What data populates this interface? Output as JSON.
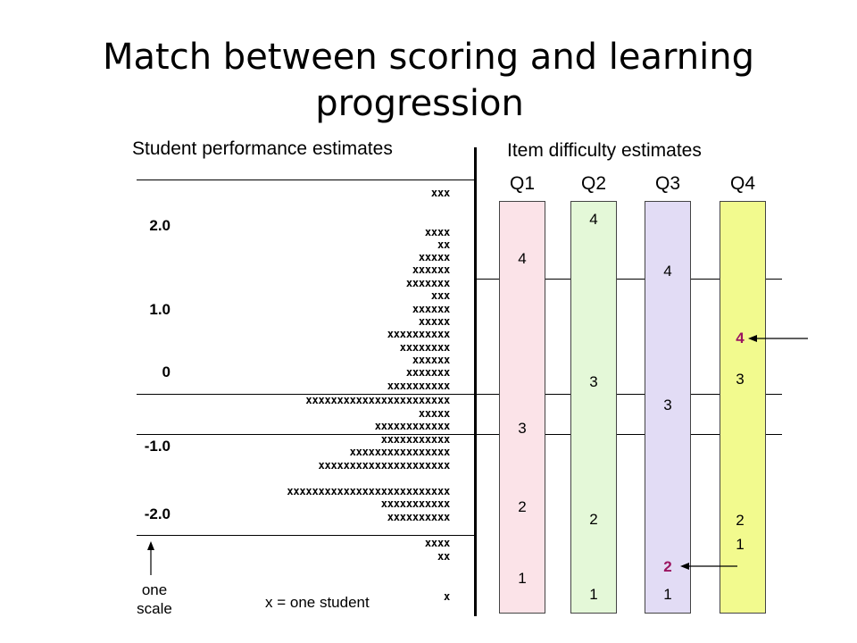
{
  "title": {
    "line1": "Match between scoring and learning",
    "line2": "progression"
  },
  "left_header": "Student performance estimates",
  "right_header": "Item difficulty estimates",
  "scale_labels": [
    "2.0",
    "1.0",
    "0",
    "-1.0",
    "-2.0"
  ],
  "student_rows": [
    "xxx",
    "xxxx",
    "xx",
    "xxxxx",
    "xxxxxx",
    "xxxxxxx",
    "xxx",
    "xxxxxx",
    "xxxxx",
    "xxxxxxxxxx",
    "xxxxxxxx",
    "xxxxxx",
    "xxxxxxx",
    "xxxxxxxxxx",
    "xxxxxxxxxxxxxxxxxxxxxxx",
    "xxxxx",
    "xxxxxxxxxxxx",
    "xxxxxxxxxxx",
    "xxxxxxxxxxxxxxxx",
    "xxxxxxxxxxxxxxxxxxxxx",
    "xxxxxxxxxxxxxxxxxxxxxxxxxx",
    "xxxxxxxxxxx",
    "xxxxxxxxxx",
    "xxxx",
    "xx",
    "x"
  ],
  "columns": [
    {
      "label": "Q1",
      "color": "#fbe3e8",
      "scores": [
        "4",
        "3",
        "2",
        "1"
      ],
      "highlight": []
    },
    {
      "label": "Q2",
      "color": "#e4f8d8",
      "scores": [
        "4",
        "3",
        "2",
        "1"
      ],
      "highlight": []
    },
    {
      "label": "Q3",
      "color": "#e2dcf5",
      "scores": [
        "4",
        "3",
        "2",
        "1"
      ],
      "highlight": [
        "2"
      ]
    },
    {
      "label": "Q4",
      "color": "#f2fa8e",
      "scores": [
        "4",
        "3",
        "2",
        "1"
      ],
      "highlight": [
        "4"
      ]
    }
  ],
  "highlight_color": "#9b1460",
  "legend": "x = one student",
  "scale_note": {
    "line1": "one",
    "line2": "scale"
  }
}
